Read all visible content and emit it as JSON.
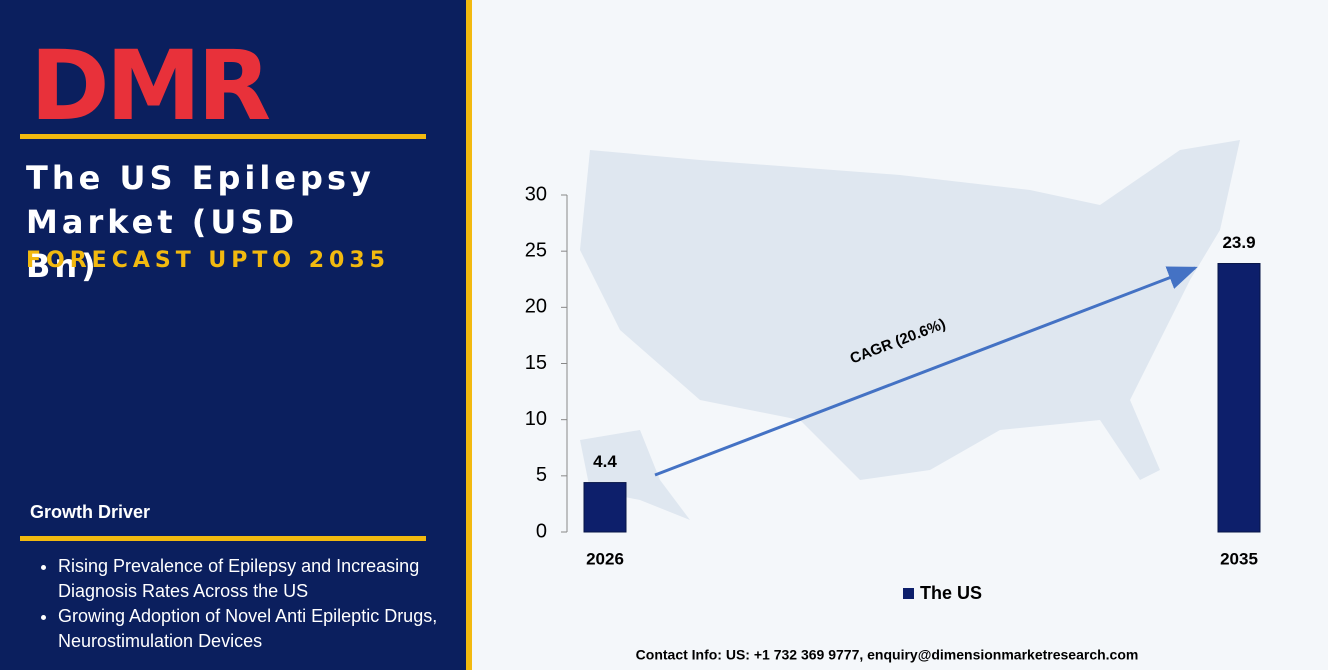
{
  "panel": {
    "logo": "DMR",
    "title": "The US Epilepsy Market (USD Bn)",
    "subtitle": "FORECAST UPTO 2035",
    "drivers_heading": "Growth Driver",
    "drivers": [
      "Rising Prevalence of Epilepsy and Increasing Diagnosis Rates Across the US",
      "Growing Adoption of Novel Anti Epileptic Drugs, Neurostimulation Devices"
    ]
  },
  "contact": "Contact Info: US: +1 732 369 9777, enquiry@dimensionmarketresearch.com",
  "chart_data": {
    "type": "bar",
    "categories": [
      "2026",
      "2035"
    ],
    "series": [
      {
        "name": "The US",
        "color": "#0d1f6b",
        "values": [
          4.4,
          23.9
        ]
      }
    ],
    "ylim": [
      0,
      30
    ],
    "yticks": [
      0,
      5,
      10,
      15,
      20,
      25,
      30
    ],
    "annotation": "CAGR (20.6%)",
    "legend": "bottom"
  }
}
